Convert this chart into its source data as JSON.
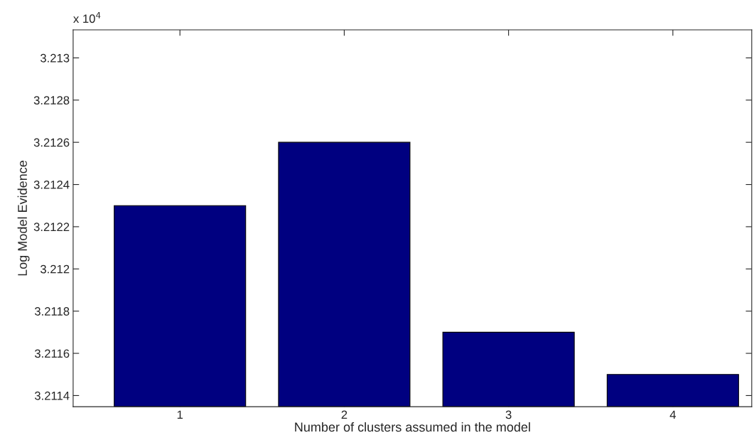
{
  "chart_data": {
    "type": "bar",
    "xlabel": "Number of clusters assumed in the model",
    "ylabel": "Log Model Evidence",
    "categories": [
      "1",
      "2",
      "3",
      "4"
    ],
    "values": [
      3.2123,
      3.2126,
      3.2117,
      3.2115
    ],
    "color": "#000080",
    "ylim": [
      3.211347,
      3.213133
    ],
    "yticks": [
      3.2114,
      3.2116,
      3.2118,
      3.212,
      3.2122,
      3.2124,
      3.2126,
      3.2128,
      3.213
    ],
    "annotations": [
      "x 10$^{4}$"
    ],
    "grid": false
  }
}
